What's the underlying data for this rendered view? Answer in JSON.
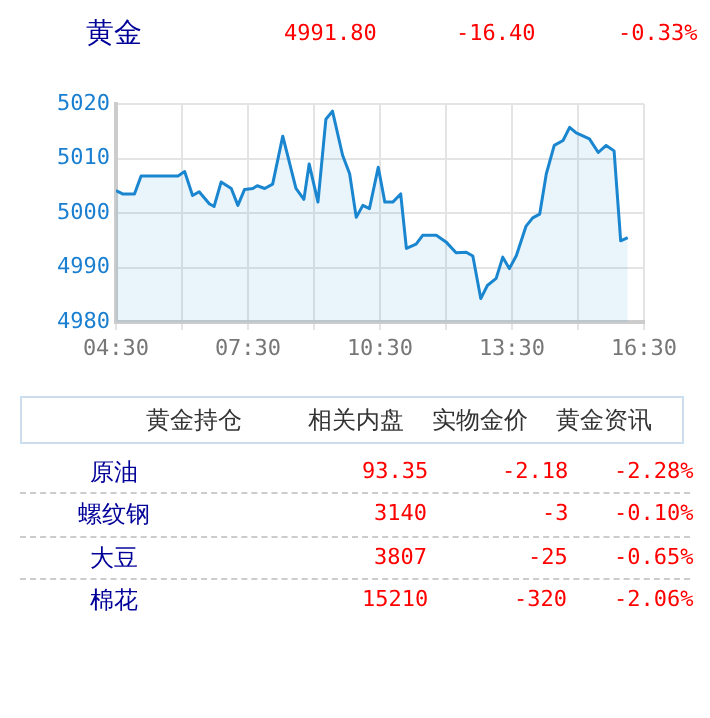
{
  "chart_data": {
    "type": "area",
    "title": "黄金",
    "annotations": [
      "4991.80",
      "-16.40",
      "-0.33%",
      "黄金持仓",
      "相关内盘",
      "实物金价",
      "黄金资讯",
      "原油",
      "93.35",
      "-2.18",
      "-2.28%",
      "螺纹钢",
      "3140",
      "-3",
      "-0.10%",
      "大豆",
      "3807",
      "-25",
      "-0.65%",
      "棉花",
      "15210",
      "-320",
      "-2.06%"
    ],
    "x": [
      4.5,
      4.65,
      4.92,
      5.07,
      5.91,
      6.06,
      6.24,
      6.39,
      6.62,
      6.73,
      6.89,
      7.12,
      7.27,
      7.42,
      7.61,
      7.71,
      7.88,
      8.06,
      8.29,
      8.59,
      8.77,
      8.89,
      9.09,
      9.27,
      9.42,
      9.65,
      9.81,
      9.96,
      10.11,
      10.26,
      10.46,
      10.61,
      10.79,
      10.97,
      11.1,
      11.32,
      11.47,
      11.78,
      12.0,
      12.23,
      12.46,
      12.61,
      12.79,
      12.94,
      13.14,
      13.29,
      13.44,
      13.6,
      13.82,
      13.97,
      14.13,
      14.28,
      14.46,
      14.66,
      14.81,
      14.96,
      15.26,
      15.46,
      15.64,
      15.82,
      15.97,
      16.13
    ],
    "series": [
      {
        "color": "#1a86d0",
        "values": [
          5004.1,
          5003.5,
          5003.5,
          5006.8,
          5006.8,
          5007.6,
          5003.2,
          5003.9,
          5001.7,
          5001.2,
          5005.7,
          5004.5,
          5001.4,
          5004.3,
          5004.5,
          5005.0,
          5004.5,
          5005.3,
          5014.1,
          5004.5,
          5002.5,
          5009.0,
          5002.0,
          5017.2,
          5018.7,
          5010.6,
          5007.2,
          4999.2,
          5001.4,
          5000.8,
          5008.4,
          5002.0,
          5002.0,
          5003.5,
          4993.5,
          4994.3,
          4995.9,
          4995.9,
          4994.7,
          4992.7,
          4992.8,
          4992.1,
          4984.3,
          4986.7,
          4988.0,
          4991.9,
          4989.8,
          4992.2,
          4997.6,
          4999.1,
          4999.8,
          5007.2,
          5012.4,
          5013.3,
          5015.7,
          5014.7,
          5013.6,
          5011.1,
          5012.4,
          5011.4,
          4994.9,
          4995.5
        ]
      }
    ],
    "xlim": [
      4.5,
      16.5
    ],
    "xticks": [
      {
        "value": 4.5,
        "label": "04:30"
      },
      {
        "value": 6,
        "label": null
      },
      {
        "value": 7.5,
        "label": "07:30"
      },
      {
        "value": 9,
        "label": null
      },
      {
        "value": 10.5,
        "label": "10:30"
      },
      {
        "value": 12,
        "label": null
      },
      {
        "value": 13.5,
        "label": "13:30"
      },
      {
        "value": 15,
        "label": null
      },
      {
        "value": 16.5,
        "label": "16:30"
      }
    ],
    "ylim": [
      4980,
      5020
    ],
    "yticks": [
      4980,
      4990,
      5000,
      5010,
      5020
    ],
    "grid": true,
    "legend": false,
    "marker": "none",
    "line_style": "solid"
  }
}
